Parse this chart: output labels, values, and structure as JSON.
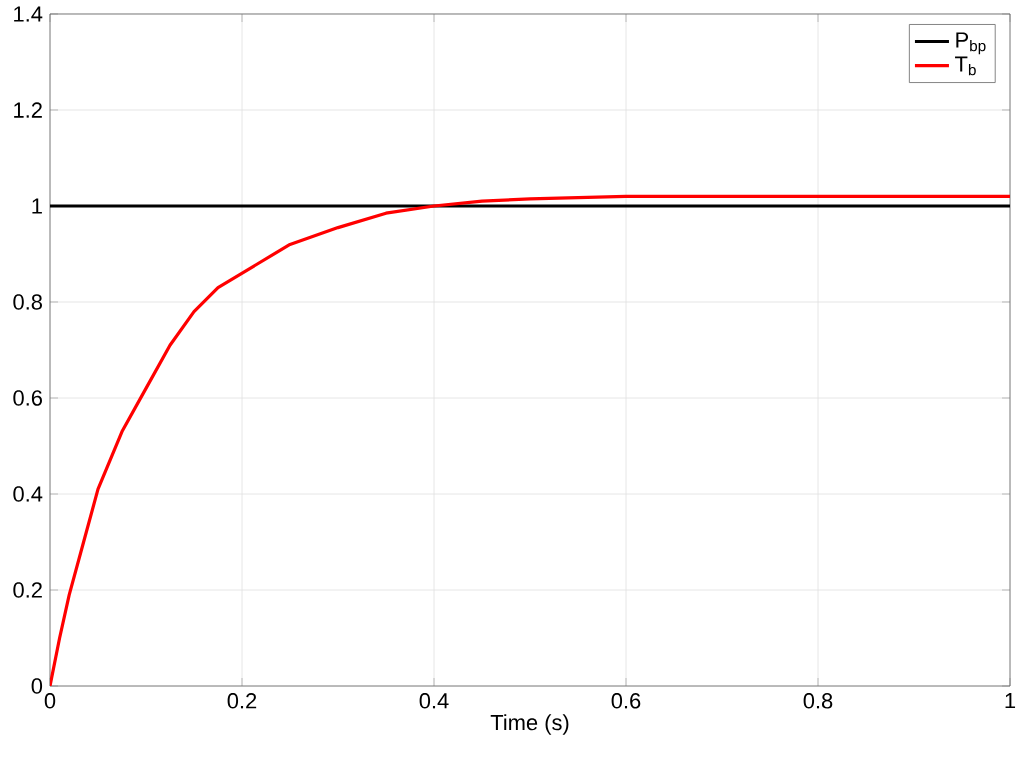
{
  "chart_data": {
    "type": "line",
    "xlabel": "Time (s)",
    "xlim": [
      0,
      1
    ],
    "ylim": [
      0,
      1.4
    ],
    "xticks": [
      0,
      0.2,
      0.4,
      0.6,
      0.8,
      1
    ],
    "yticks": [
      0,
      0.2,
      0.4,
      0.6,
      0.8,
      1,
      1.2,
      1.4
    ],
    "grid": true,
    "legend": "top right",
    "marker": "none",
    "line_style": "solid",
    "series": [
      {
        "name": "P$_{bp}$",
        "color": "#000000",
        "x": [
          0,
          1
        ],
        "values": [
          1,
          1
        ]
      },
      {
        "name": "T$_{b}$",
        "color": "#ff0000",
        "x": [
          0,
          0.01,
          0.02,
          0.035,
          0.05,
          0.075,
          0.1,
          0.125,
          0.15,
          0.175,
          0.2,
          0.25,
          0.3,
          0.35,
          0.4,
          0.45,
          0.5,
          0.6,
          0.7,
          0.8,
          0.9,
          1
        ],
        "values": [
          0,
          0.1,
          0.19,
          0.3,
          0.41,
          0.53,
          0.62,
          0.71,
          0.78,
          0.83,
          0.86,
          0.92,
          0.955,
          0.985,
          1.0,
          1.01,
          1.015,
          1.02,
          1.02,
          1.02,
          1.02,
          1.02
        ]
      }
    ]
  }
}
